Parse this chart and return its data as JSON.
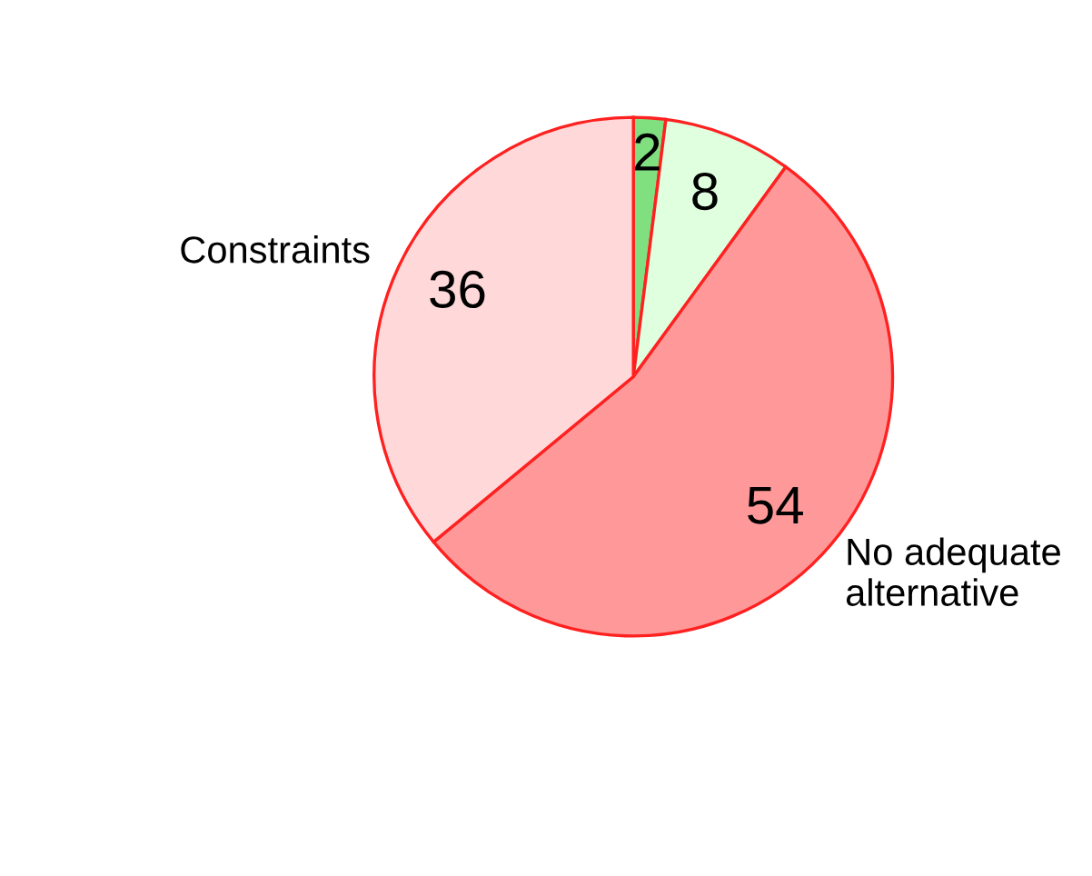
{
  "chart_data": {
    "type": "pie",
    "categories": [
      null,
      null,
      "No adequate\nalternative",
      "Constraints"
    ],
    "values": [
      2,
      8,
      54,
      36
    ],
    "colors": [
      "#80e080",
      "#dfffdf",
      "#ff9999",
      "#ffd9d9"
    ],
    "data_labels": true
  }
}
